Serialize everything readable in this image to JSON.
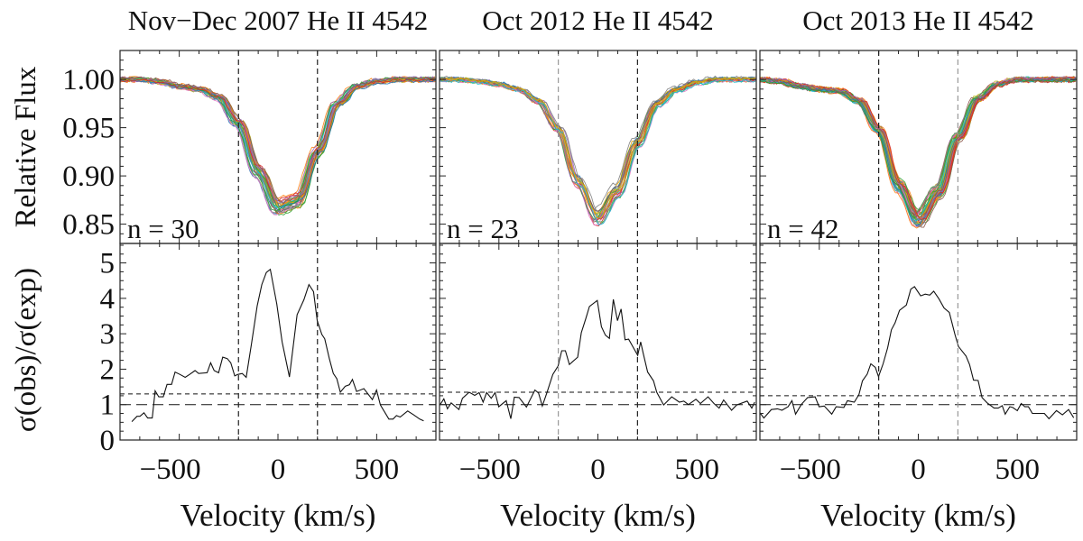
{
  "chart_data": [
    {
      "type": "line",
      "title": "Nov−Dec 2007 He II 4542",
      "n_label": "n = 30",
      "n_spectra": 30,
      "top": {
        "ylabel": "Relative Flux",
        "ylim": [
          0.83,
          1.03
        ],
        "yticks": [
          "1.00",
          "0.95",
          "0.90",
          "0.85"
        ],
        "ytick_values": [
          1.0,
          0.95,
          0.9,
          0.85
        ],
        "mean_profile": {
          "v": [
            -800,
            -700,
            -600,
            -500,
            -400,
            -300,
            -200,
            -100,
            0,
            100,
            200,
            300,
            400,
            500,
            600,
            700,
            800
          ],
          "flux": [
            1.0,
            1.0,
            0.998,
            0.993,
            0.99,
            0.982,
            0.955,
            0.905,
            0.868,
            0.875,
            0.925,
            0.975,
            0.993,
            0.998,
            1.0,
            1.0,
            1.0
          ]
        }
      },
      "bottom": {
        "ylabel": "σ(obs)/σ(exp)",
        "ylim": [
          0,
          5.55
        ],
        "yticks": [
          "0",
          "1",
          "2",
          "3",
          "4",
          "5"
        ],
        "ytick_values": [
          0,
          1,
          2,
          3,
          4,
          5
        ],
        "ref_lines": [
          1.0,
          1.3
        ],
        "v": [
          -740,
          -714,
          -699,
          -679,
          -660,
          -637,
          -622,
          -604,
          -581,
          -562,
          -539,
          -521,
          -496,
          -470,
          -448,
          -420,
          -402,
          -359,
          -341,
          -323,
          -301,
          -280,
          -257,
          -239,
          -219,
          -204,
          -181,
          -161,
          -135,
          -105,
          -82,
          -59,
          -39,
          -6,
          21,
          58,
          97,
          131,
          157,
          180,
          199,
          222,
          237,
          260,
          280,
          298,
          316,
          341,
          362,
          377,
          398,
          435,
          478,
          499,
          519,
          562,
          583,
          600,
          619,
          657,
          687,
          718,
          738
        ],
        "ratio": [
          0.52,
          0.67,
          0.67,
          0.77,
          0.62,
          0.62,
          1.39,
          1.22,
          1.22,
          1.57,
          1.57,
          1.92,
          1.85,
          1.77,
          1.85,
          1.96,
          1.88,
          1.9,
          2.18,
          1.96,
          1.9,
          2.34,
          2.3,
          2.18,
          1.81,
          1.85,
          1.88,
          1.77,
          2.69,
          3.79,
          4.39,
          4.73,
          4.82,
          3.84,
          2.77,
          1.78,
          3.54,
          3.96,
          4.39,
          4.19,
          3.37,
          2.98,
          2.86,
          2.3,
          1.88,
          1.73,
          1.35,
          1.52,
          1.56,
          1.71,
          1.37,
          1.45,
          1.14,
          1.41,
          0.99,
          0.59,
          0.59,
          0.69,
          0.65,
          0.82,
          0.71,
          0.59,
          0.54
        ]
      },
      "vlines": [
        -200,
        200
      ],
      "vline_colors": [
        "#222222",
        "#222222"
      ],
      "xlabel": "Velocity (km/s)",
      "xlim": [
        -800,
        800
      ],
      "xticks": [
        "−500",
        "0",
        "500"
      ],
      "xtick_values": [
        -500,
        0,
        500
      ]
    },
    {
      "type": "line",
      "title": "Oct 2012 He II 4542",
      "n_label": "n = 23",
      "n_spectra": 23,
      "top": {
        "ylim": [
          0.83,
          1.03
        ],
        "mean_profile": {
          "v": [
            -800,
            -700,
            -600,
            -500,
            -400,
            -300,
            -200,
            -100,
            0,
            100,
            200,
            300,
            400,
            500,
            600,
            700,
            800
          ],
          "flux": [
            1.0,
            1.0,
            0.998,
            0.995,
            0.99,
            0.978,
            0.95,
            0.895,
            0.858,
            0.885,
            0.935,
            0.975,
            0.99,
            0.997,
            1.0,
            1.0,
            1.0
          ]
        }
      },
      "bottom": {
        "ylim": [
          0,
          5.55
        ],
        "ref_lines": [
          1.0,
          1.35
        ],
        "v": [
          -798,
          -778,
          -760,
          -741,
          -702,
          -684,
          -650,
          -622,
          -600,
          -580,
          -562,
          -539,
          -519,
          -501,
          -463,
          -440,
          -422,
          -398,
          -361,
          -318,
          -300,
          -281,
          -258,
          -228,
          -201,
          -183,
          -164,
          -144,
          -102,
          -84,
          -61,
          -43,
          -3,
          18,
          38,
          58,
          78,
          99,
          117,
          137,
          155,
          201,
          216,
          228,
          251,
          281,
          297,
          332,
          373,
          411,
          434,
          457,
          495,
          518,
          556,
          586,
          612,
          635,
          675,
          701,
          754,
          777,
          792
        ],
        "ratio": [
          0.99,
          1.16,
          0.88,
          1.05,
          0.86,
          1.18,
          1.35,
          1.26,
          1.34,
          1.07,
          1.34,
          1.18,
          1.34,
          0.94,
          1.11,
          0.6,
          1.21,
          1.2,
          0.93,
          1.41,
          1.33,
          0.96,
          1.33,
          1.85,
          2.09,
          2.52,
          2.52,
          2.13,
          2.34,
          3.03,
          3.43,
          3.77,
          3.94,
          3.2,
          2.96,
          2.87,
          3.97,
          3.37,
          3.7,
          2.83,
          2.85,
          2.39,
          2.77,
          2.47,
          1.92,
          1.67,
          1.35,
          0.99,
          1.22,
          1.07,
          1.1,
          1.0,
          1.15,
          1.03,
          1.22,
          1.03,
          0.9,
          1.13,
          0.84,
          0.99,
          1.1,
          0.9,
          1.07
        ]
      },
      "vlines": [
        -200,
        200
      ],
      "vline_colors": [
        "#999999",
        "#222222"
      ],
      "xlabel": "Velocity (km/s)",
      "xlim": [
        -800,
        800
      ],
      "xticks": [
        "−500",
        "0",
        "500"
      ],
      "xtick_values": [
        -500,
        0,
        500
      ]
    },
    {
      "type": "line",
      "title": "Oct 2013 He II 4542",
      "n_label": "n = 42",
      "n_spectra": 42,
      "top": {
        "ylim": [
          0.83,
          1.03
        ],
        "mean_profile": {
          "v": [
            -800,
            -700,
            -600,
            -500,
            -400,
            -300,
            -200,
            -100,
            0,
            100,
            200,
            300,
            400,
            500,
            600,
            700,
            800
          ],
          "flux": [
            1.0,
            0.998,
            0.993,
            0.99,
            0.988,
            0.978,
            0.948,
            0.89,
            0.855,
            0.883,
            0.94,
            0.98,
            0.995,
            1.0,
            1.0,
            1.0,
            1.0
          ]
        }
      },
      "bottom": {
        "ylim": [
          0,
          5.55
        ],
        "ref_lines": [
          1.0,
          1.25
        ],
        "v": [
          -800,
          -780,
          -742,
          -711,
          -689,
          -658,
          -638,
          -620,
          -590,
          -559,
          -521,
          -501,
          -475,
          -437,
          -415,
          -376,
          -358,
          -323,
          -300,
          -282,
          -258,
          -240,
          -217,
          -201,
          -178,
          -155,
          -136,
          -117,
          -95,
          -60,
          -38,
          -19,
          12,
          35,
          58,
          78,
          104,
          130,
          157,
          185,
          203,
          241,
          259,
          279,
          302,
          322,
          348,
          383,
          404,
          424,
          439,
          462,
          477,
          500,
          520,
          538,
          556,
          576,
          637,
          660,
          698,
          728,
          759,
          785
        ],
        "ratio": [
          0.77,
          0.62,
          0.86,
          0.88,
          0.84,
          0.94,
          1.11,
          0.73,
          1.01,
          1.2,
          1.22,
          0.94,
          0.96,
          0.73,
          0.94,
          0.92,
          1.11,
          1.07,
          1.28,
          1.67,
          1.86,
          2.15,
          2.05,
          1.79,
          2.15,
          2.6,
          3.11,
          3.31,
          3.66,
          3.81,
          4.26,
          4.33,
          4.07,
          4.12,
          4.09,
          4.2,
          3.99,
          3.73,
          3.6,
          2.98,
          2.64,
          2.37,
          2.13,
          1.69,
          1.68,
          1.2,
          1.05,
          0.9,
          0.9,
          0.97,
          0.73,
          0.94,
          0.92,
          0.83,
          1.03,
          0.94,
          0.94,
          0.75,
          0.75,
          0.6,
          0.83,
          0.71,
          0.86,
          0.63
        ]
      },
      "vlines": [
        -200,
        200
      ],
      "vline_colors": [
        "#222222",
        "#999999"
      ],
      "xlabel": "Velocity (km/s)",
      "xlim": [
        -800,
        800
      ],
      "xticks": [
        "−500",
        "0",
        "500"
      ],
      "xtick_values": [
        -500,
        0,
        500
      ]
    }
  ],
  "spectrum_colors": [
    "#1f77b4",
    "#ff7f0e",
    "#2ca02c",
    "#d62728",
    "#9467bd",
    "#8c564b",
    "#e377c2",
    "#7f7f7f",
    "#bcbd22",
    "#17becf",
    "#e6a000",
    "#4daf4a"
  ]
}
